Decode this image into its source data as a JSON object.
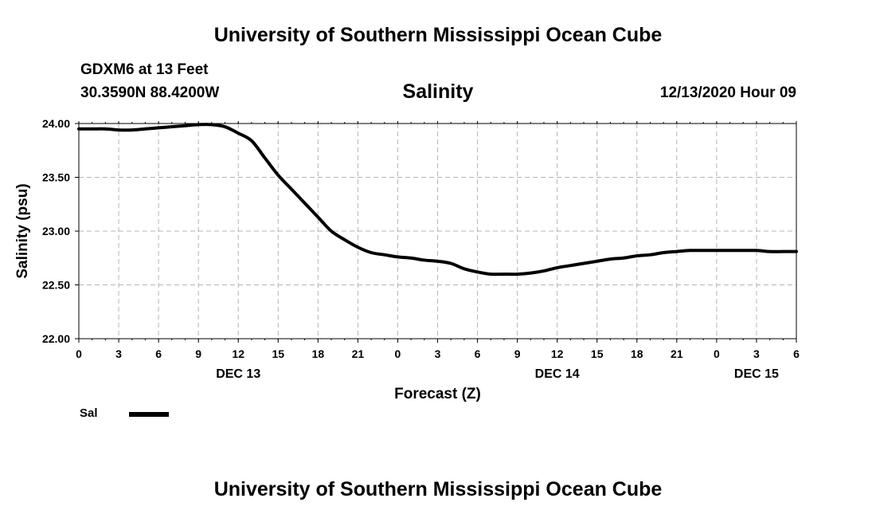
{
  "header": {
    "title": "University of Southern Mississippi Ocean Cube",
    "station": "GDXM6 at 13 Feet",
    "coords": "30.3590N 88.4200W",
    "variable": "Salinity",
    "datetime": "12/13/2020 Hour 09"
  },
  "footer": {
    "title": "University of Southern Mississippi Ocean Cube"
  },
  "legend": {
    "label": "Sal"
  },
  "colors": {
    "line": "#000000",
    "grid": "#b4b4b4",
    "axis": "#000000"
  },
  "chart_data": {
    "type": "line",
    "title": "Salinity",
    "xlabel": "Forecast (Z)",
    "ylabel": "Salinity (psu)",
    "xlim": [
      0,
      54
    ],
    "ylim": [
      22.0,
      24.0
    ],
    "grid": true,
    "x_ticks": [
      0,
      3,
      6,
      9,
      12,
      15,
      18,
      21,
      24,
      27,
      30,
      33,
      36,
      39,
      42,
      45,
      48,
      51,
      54
    ],
    "x_tick_labels": [
      "0",
      "3",
      "6",
      "9",
      "12",
      "15",
      "18",
      "21",
      "0",
      "3",
      "6",
      "9",
      "12",
      "15",
      "18",
      "21",
      "0",
      "3",
      "6"
    ],
    "y_ticks": [
      22.0,
      22.5,
      23.0,
      23.5,
      24.0
    ],
    "y_tick_labels": [
      "22.00",
      "22.50",
      "23.00",
      "23.50",
      "24.00"
    ],
    "day_labels": [
      {
        "x": 12,
        "label": "DEC 13"
      },
      {
        "x": 36,
        "label": "DEC 14"
      },
      {
        "x": 51,
        "label": "DEC 15"
      }
    ],
    "series": [
      {
        "name": "Sal",
        "x": [
          0,
          1,
          2,
          3,
          4,
          5,
          6,
          7,
          8,
          9,
          10,
          11,
          12,
          13,
          14,
          15,
          16,
          17,
          18,
          19,
          20,
          21,
          22,
          23,
          24,
          25,
          26,
          27,
          28,
          29,
          30,
          31,
          32,
          33,
          34,
          35,
          36,
          37,
          38,
          39,
          40,
          41,
          42,
          43,
          44,
          45,
          46,
          47,
          48,
          49,
          50,
          51,
          52,
          53,
          54
        ],
        "values": [
          23.95,
          23.95,
          23.95,
          23.94,
          23.94,
          23.95,
          23.96,
          23.97,
          23.98,
          23.99,
          23.99,
          23.97,
          23.91,
          23.84,
          23.68,
          23.52,
          23.39,
          23.26,
          23.13,
          23.0,
          22.92,
          22.85,
          22.8,
          22.78,
          22.76,
          22.75,
          22.73,
          22.72,
          22.7,
          22.65,
          22.62,
          22.6,
          22.6,
          22.6,
          22.61,
          22.63,
          22.66,
          22.68,
          22.7,
          22.72,
          22.74,
          22.75,
          22.77,
          22.78,
          22.8,
          22.81,
          22.82,
          22.82,
          22.82,
          22.82,
          22.82,
          22.82,
          22.81,
          22.81,
          22.81
        ]
      }
    ]
  }
}
